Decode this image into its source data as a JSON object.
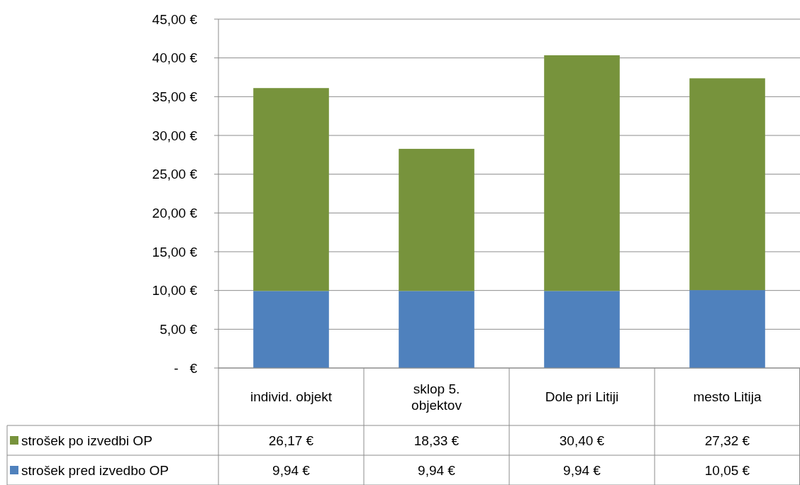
{
  "chart_data": {
    "type": "bar",
    "stacked": true,
    "categories": [
      "individ. objekt",
      "sklop 5. objektov",
      "Dole pri Litiji",
      "mesto Litija"
    ],
    "series": [
      {
        "name": "strošek pred izvedbo OP",
        "color": "#4f81bd",
        "values": [
          9.94,
          9.94,
          9.94,
          10.05
        ],
        "value_labels": [
          "9,94 €",
          "9,94 €",
          "9,94 €",
          "10,05 €"
        ]
      },
      {
        "name": "strošek po izvedbi OP",
        "color": "#77933c",
        "values": [
          26.17,
          18.33,
          30.4,
          27.32
        ],
        "value_labels": [
          "26,17 €",
          "18,33 €",
          "30,40 €",
          "27,32 €"
        ]
      }
    ],
    "ylim": [
      0,
      45
    ],
    "yticks": [
      {
        "value": 0,
        "label": "-   €"
      },
      {
        "value": 5,
        "label": "5,00 €"
      },
      {
        "value": 10,
        "label": "10,00 €"
      },
      {
        "value": 15,
        "label": "15,00 €"
      },
      {
        "value": 20,
        "label": "20,00 €"
      },
      {
        "value": 25,
        "label": "25,00 €"
      },
      {
        "value": 30,
        "label": "30,00 €"
      },
      {
        "value": 35,
        "label": "35,00 €"
      },
      {
        "value": 40,
        "label": "40,00 €"
      },
      {
        "value": 45,
        "label": "45,00 €"
      }
    ],
    "grid": "y",
    "legend": "bottom"
  }
}
